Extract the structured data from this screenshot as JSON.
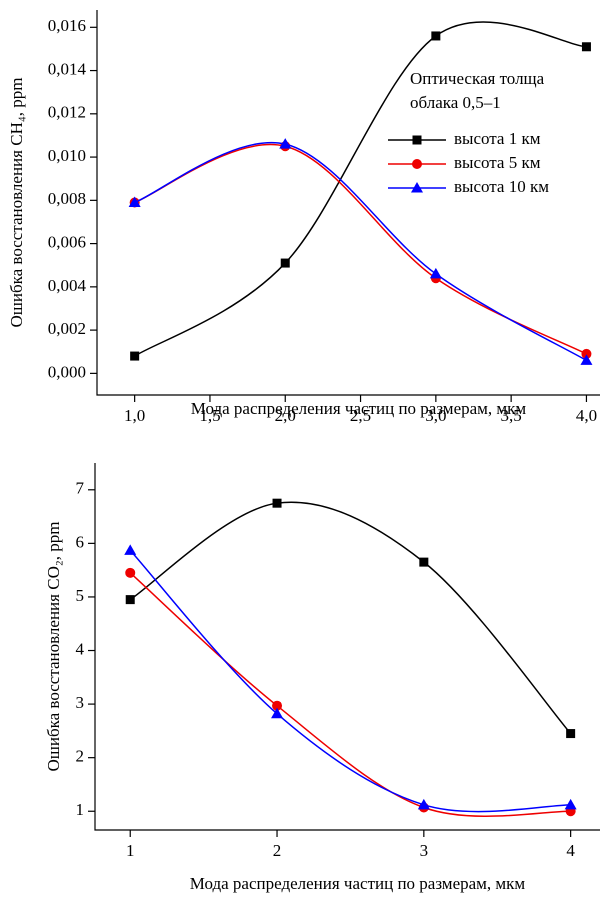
{
  "chart_data": [
    {
      "type": "line",
      "xlabel": "Мода распределения частиц по размерам, мкм",
      "ylabel": "Ошибка восстановления CH₄, ppm",
      "x": [
        1,
        2,
        3,
        4
      ],
      "xlim": [
        0.75,
        4.09
      ],
      "xticks": [
        {
          "value": 1,
          "label": "1,0"
        },
        {
          "value": 1.5,
          "label": "1,5"
        },
        {
          "value": 2,
          "label": "2,0"
        },
        {
          "value": 2.5,
          "label": "2,5"
        },
        {
          "value": 3,
          "label": "3,0"
        },
        {
          "value": 3.5,
          "label": "3,5"
        },
        {
          "value": 4,
          "label": "4,0"
        }
      ],
      "ylim": [
        -0.001,
        0.0168
      ],
      "yticks": [
        {
          "value": 0,
          "label": "0,000"
        },
        {
          "value": 0.002,
          "label": "0,002"
        },
        {
          "value": 0.004,
          "label": "0,004"
        },
        {
          "value": 0.006,
          "label": "0,006"
        },
        {
          "value": 0.008,
          "label": "0,008"
        },
        {
          "value": 0.01,
          "label": "0,010"
        },
        {
          "value": 0.012,
          "label": "0,012"
        },
        {
          "value": 0.014,
          "label": "0,014"
        },
        {
          "value": 0.016,
          "label": "0,016"
        }
      ],
      "legend": "upper right",
      "legend_title": [
        "Оптическая толща",
        "облака 0,5–1"
      ],
      "series": [
        {
          "name": "высота 1 км",
          "color": "#000000",
          "marker": "square",
          "values": [
            0.0008,
            0.0051,
            0.0156,
            0.0151
          ]
        },
        {
          "name": "высота 5 км",
          "color": "#ee0000",
          "marker": "circle",
          "values": [
            0.0079,
            0.0105,
            0.0044,
            0.0009
          ]
        },
        {
          "name": "высота 10 км",
          "color": "#0000ff",
          "marker": "triangle",
          "values": [
            0.0079,
            0.0106,
            0.0046,
            0.0006
          ]
        }
      ]
    },
    {
      "type": "line",
      "xlabel": "Мода распределения частиц по размерам, мкм",
      "ylabel": "Ошибка восстановления CO₂, ppm",
      "x": [
        1,
        2,
        3,
        4
      ],
      "xlim": [
        0.76,
        4.2
      ],
      "xticks": [
        1,
        2,
        3,
        4
      ],
      "ylim": [
        0.65,
        7.5
      ],
      "yticks": [
        1,
        2,
        3,
        4,
        5,
        6,
        7
      ],
      "series": [
        {
          "color": "#000000",
          "marker": "square",
          "values": [
            4.95,
            6.75,
            5.65,
            2.45
          ]
        },
        {
          "color": "#ee0000",
          "marker": "circle",
          "values": [
            5.45,
            2.97,
            1.07,
            1.0
          ]
        },
        {
          "color": "#0000ff",
          "marker": "triangle",
          "values": [
            5.87,
            2.82,
            1.12,
            1.12
          ]
        }
      ]
    }
  ]
}
